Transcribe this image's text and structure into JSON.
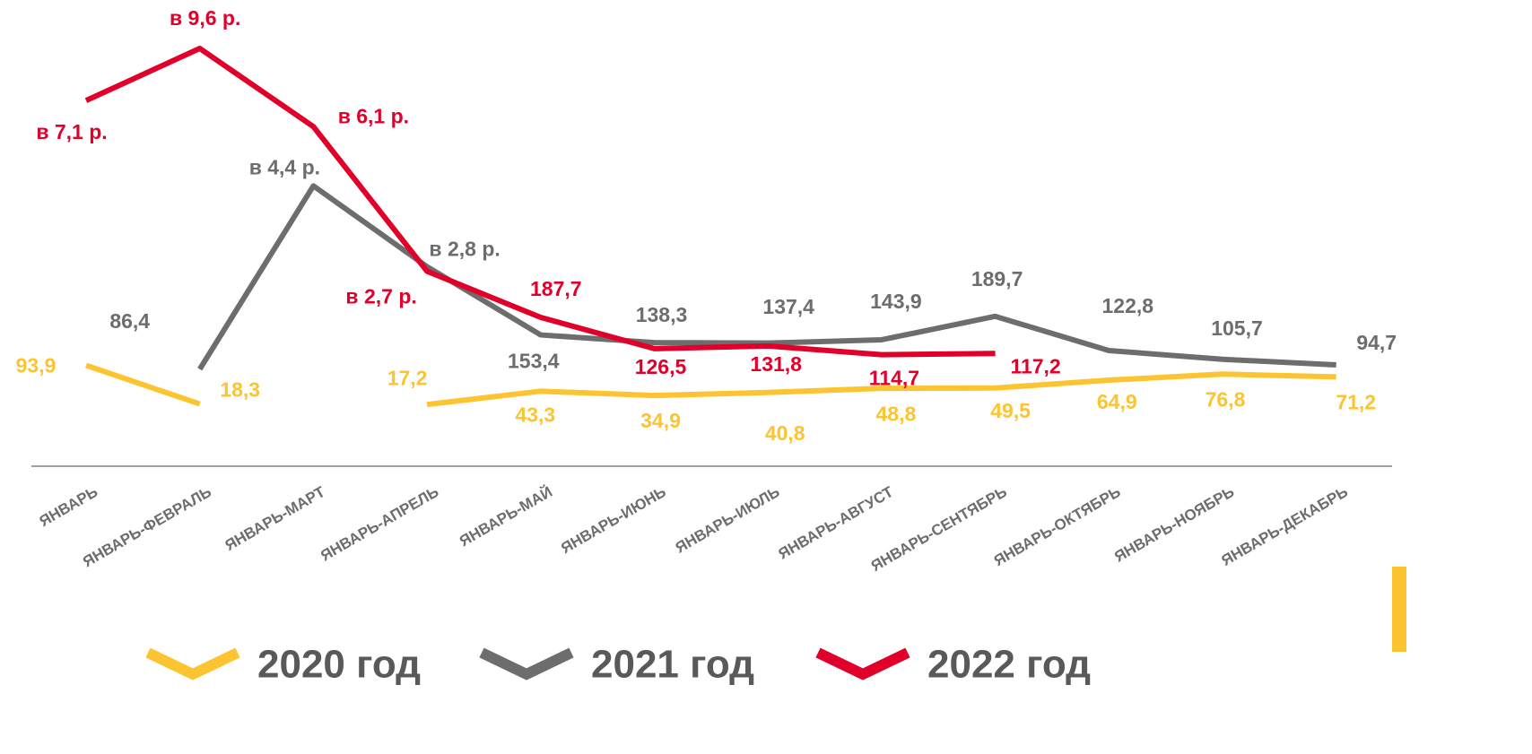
{
  "chart_data": {
    "type": "line",
    "categories": [
      "ЯНВАРЬ",
      "ЯНВАРЬ-ФЕВРАЛЬ",
      "ЯНВАРЬ-МАРТ",
      "ЯНВАРЬ-АПРЕЛЬ",
      "ЯНВАРЬ-МАЙ",
      "ЯНВАРЬ-ИЮНЬ",
      "ЯНВАРЬ-ИЮЛЬ",
      "ЯНВАРЬ-АВГУСТ",
      "ЯНВАРЬ-СЕНТЯБРЬ",
      "ЯНВАРЬ-ОКТЯБРЬ",
      "ЯНВАРЬ-НОЯБРЬ",
      "ЯНВАРЬ-ДЕКАБРЬ"
    ],
    "ylim": [
      -100,
      800
    ],
    "series": [
      {
        "name": "2020 год",
        "color": "#fcc430",
        "values": [
          93.9,
          18.3,
          null,
          17.2,
          43.3,
          34.9,
          40.8,
          48.8,
          49.5,
          64.9,
          76.8,
          71.2
        ],
        "value_labels": [
          "93,9",
          "18,3",
          null,
          "17,2",
          "43,3",
          "34,9",
          "40,8",
          "48,8",
          "49,5",
          "64,9",
          "76,8",
          "71,2"
        ]
      },
      {
        "name": "2021 год",
        "color": "#6d6d6d",
        "values": [
          null,
          86.4,
          445,
          287,
          153.4,
          138.3,
          137.4,
          143.9,
          189.7,
          122.8,
          105.7,
          94.7
        ],
        "value_labels": [
          null,
          "86,4",
          null,
          null,
          "153,4",
          "138,3",
          "137,4",
          "143,9",
          "189,7",
          "122,8",
          "105,7",
          "94,7"
        ],
        "ratio_labels": [
          null,
          null,
          "в 4,4 р.",
          "в 2,8 р.",
          null,
          null,
          null,
          null,
          null,
          null,
          null,
          null
        ]
      },
      {
        "name": "2022 год",
        "color": "#e1002a",
        "values": [
          612,
          714,
          561,
          278,
          187.7,
          126.5,
          131.8,
          114.7,
          117.2,
          null,
          null,
          null
        ],
        "value_labels": [
          null,
          null,
          null,
          null,
          "187,7",
          "126,5",
          "131,8",
          "114,7",
          "117,2",
          null,
          null,
          null
        ],
        "ratio_labels": [
          "в 7,1 р.",
          "в 9,6 р.",
          "в 6,1 р.",
          "в 2,7 р.",
          null,
          null,
          null,
          null,
          null,
          null,
          null,
          null
        ]
      }
    ]
  }
}
